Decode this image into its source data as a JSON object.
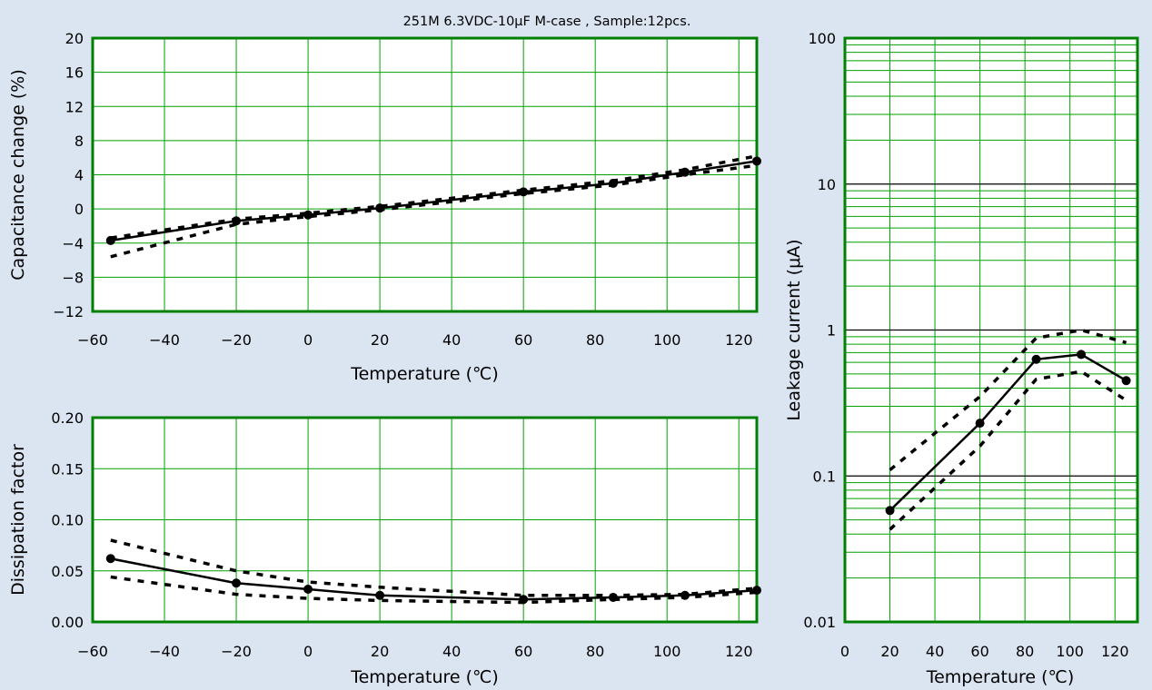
{
  "figure_title": "251M 6.3VDC-10μF M-case , Sample:12pcs.",
  "colors": {
    "background": "#dbe5f1",
    "plot_bg": "#ffffff",
    "grid": "#00a000",
    "frame": "#008000",
    "decade_line": "#000000",
    "series": "#000000"
  },
  "chart_data": [
    {
      "type": "line",
      "title": "",
      "xlabel": "Temperature (℃)",
      "ylabel": "Capacitance change (%)",
      "xlim": [
        -60,
        125
      ],
      "ylim": [
        -12,
        20
      ],
      "xticks": [
        -60,
        -40,
        -20,
        0,
        20,
        40,
        60,
        80,
        100,
        120
      ],
      "yticks": [
        -12,
        -8,
        -4,
        0,
        4,
        8,
        12,
        16,
        20
      ],
      "xtick_labels": [
        "−60",
        "−40",
        "−20",
        "0",
        "20",
        "40",
        "60",
        "80",
        "100",
        "120"
      ],
      "ytick_labels": [
        "−12",
        "−8",
        "−4",
        "0",
        "4",
        "8",
        "12",
        "16",
        "20"
      ],
      "grid": true,
      "x": [
        -55,
        -20,
        0,
        20,
        60,
        85,
        105,
        125
      ],
      "series": [
        {
          "role": "average",
          "style": "solid",
          "markers": true,
          "values": [
            -3.7,
            -1.4,
            -0.7,
            0.1,
            2.0,
            3.0,
            4.3,
            5.6
          ]
        },
        {
          "role": "max",
          "style": "dashed",
          "markers": false,
          "values": [
            -3.4,
            -1.2,
            -0.5,
            0.3,
            2.2,
            3.3,
            4.6,
            6.2
          ]
        },
        {
          "role": "min",
          "style": "dashed",
          "markers": false,
          "values": [
            -5.6,
            -1.8,
            -0.9,
            -0.1,
            1.8,
            2.8,
            4.0,
            5.1
          ]
        }
      ]
    },
    {
      "type": "line",
      "title": "",
      "xlabel": "Temperature (℃)",
      "ylabel": "Dissipation factor",
      "xlim": [
        -60,
        125
      ],
      "ylim": [
        0,
        0.2
      ],
      "xticks": [
        -60,
        -40,
        -20,
        0,
        20,
        40,
        60,
        80,
        100,
        120
      ],
      "yticks": [
        0,
        0.05,
        0.1,
        0.15,
        0.2
      ],
      "xtick_labels": [
        "−60",
        "−40",
        "−20",
        "0",
        "20",
        "40",
        "60",
        "80",
        "100",
        "120"
      ],
      "ytick_labels": [
        "0.00",
        "0.05",
        "0.10",
        "0.15",
        "0.20"
      ],
      "grid": true,
      "x": [
        -55,
        -20,
        0,
        20,
        60,
        85,
        105,
        125
      ],
      "series": [
        {
          "role": "average",
          "style": "solid",
          "markers": true,
          "values": [
            0.062,
            0.038,
            0.032,
            0.026,
            0.022,
            0.024,
            0.026,
            0.031
          ]
        },
        {
          "role": "max",
          "style": "dashed",
          "markers": false,
          "values": [
            0.08,
            0.05,
            0.039,
            0.034,
            0.026,
            0.026,
            0.027,
            0.033
          ]
        },
        {
          "role": "min",
          "style": "dashed",
          "markers": false,
          "values": [
            0.044,
            0.027,
            0.023,
            0.021,
            0.019,
            0.022,
            0.024,
            0.029
          ]
        }
      ]
    },
    {
      "type": "line",
      "title": "",
      "xlabel": "Temperature (℃)",
      "ylabel": "Leakage current (μA)",
      "xlim": [
        0,
        130
      ],
      "ylim": [
        0.01,
        100
      ],
      "yscale": "log",
      "xticks": [
        0,
        20,
        40,
        60,
        80,
        100,
        120
      ],
      "yticks": [
        0.01,
        0.1,
        1,
        10,
        100
      ],
      "xtick_labels": [
        "0",
        "20",
        "40",
        "60",
        "80",
        "100",
        "120"
      ],
      "ytick_labels": [
        "0.01",
        "0.1",
        "1",
        "10",
        "100"
      ],
      "grid": true,
      "x": [
        20,
        60,
        85,
        105,
        125
      ],
      "series": [
        {
          "role": "average",
          "style": "solid",
          "markers": true,
          "values": [
            0.058,
            0.23,
            0.63,
            0.68,
            0.45
          ]
        },
        {
          "role": "max",
          "style": "dashed",
          "markers": false,
          "values": [
            0.11,
            0.35,
            0.88,
            1.0,
            0.82
          ]
        },
        {
          "role": "min",
          "style": "dashed",
          "markers": false,
          "values": [
            0.043,
            0.16,
            0.46,
            0.52,
            0.33
          ]
        }
      ]
    }
  ]
}
